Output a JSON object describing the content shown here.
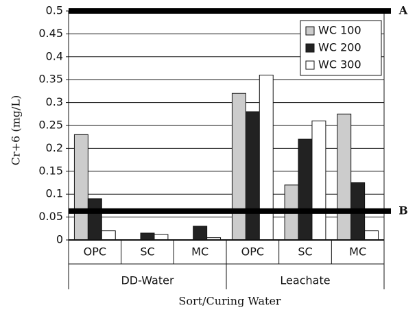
{
  "chart_data": {
    "type": "bar",
    "y_label": "Cr+6 (mg/L)",
    "x_label": "Sort/Curing Water",
    "categories": [
      "OPC",
      "SC",
      "MC",
      "OPC",
      "SC",
      "MC"
    ],
    "groups": [
      "DD-Water",
      "Leachate"
    ],
    "series": [
      {
        "name": "WC 100",
        "color": "#cccccc",
        "values": [
          0.23,
          0,
          0,
          0.32,
          0.12,
          0.275
        ]
      },
      {
        "name": "WC 200",
        "color": "#222222",
        "values": [
          0.09,
          0.015,
          0.03,
          0.28,
          0.22,
          0.125
        ]
      },
      {
        "name": "WC 300",
        "color": "#ffffff",
        "values": [
          0.02,
          0.012,
          0.005,
          0.36,
          0.26,
          0.02
        ]
      }
    ],
    "reference_lines": [
      {
        "label": "A",
        "value": 0.5
      },
      {
        "label": "B",
        "value": 0.063
      }
    ],
    "ylim": [
      0,
      0.5
    ],
    "yticks": [
      0,
      0.05,
      0.1,
      0.15,
      0.2,
      0.25,
      0.3,
      0.35,
      0.4,
      0.45,
      0.5
    ],
    "grid": true,
    "legend": "top-right"
  }
}
